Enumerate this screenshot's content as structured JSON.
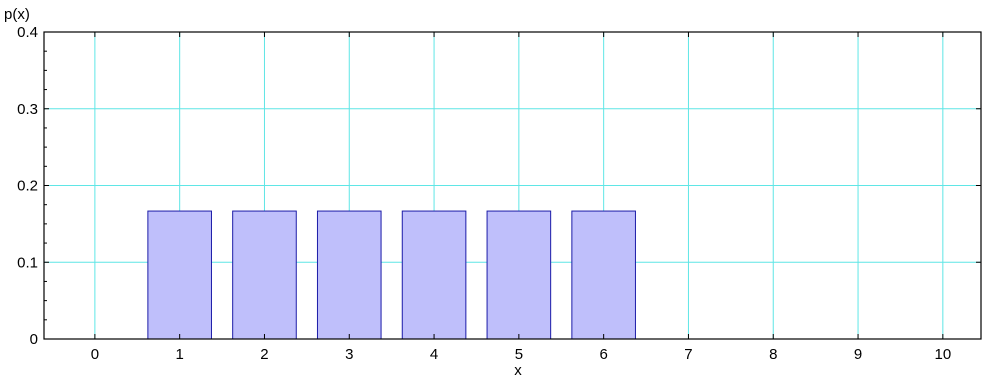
{
  "chart_data": {
    "type": "bar",
    "xlabel": "x",
    "ylabel": "p(x)",
    "x": [
      1,
      2,
      3,
      4,
      5,
      6
    ],
    "values": [
      0.1667,
      0.1667,
      0.1667,
      0.1667,
      0.1667,
      0.1667
    ],
    "xlim": [
      -0.6,
      10.45
    ],
    "ylim": [
      0,
      0.4
    ],
    "xticks": [
      0,
      1,
      2,
      3,
      4,
      5,
      6,
      7,
      8,
      9,
      10
    ],
    "yticks": [
      0,
      0.1,
      0.2,
      0.3,
      0.4
    ],
    "ytick_labels": [
      "0",
      "0.1",
      "0.2",
      "0.3",
      "0.4"
    ],
    "bar_width": 0.75,
    "grid": true,
    "colors": {
      "bar_fill": "#bfbffb",
      "bar_edge": "#1c1ca8",
      "grid": "#5fe6e6",
      "axis": "#000000"
    }
  }
}
